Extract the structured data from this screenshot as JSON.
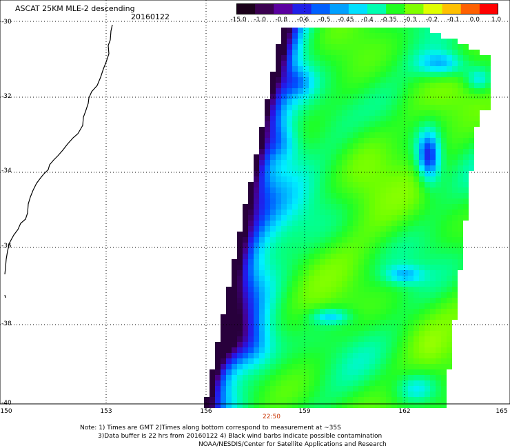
{
  "header": {
    "title": "ASCAT 25KM MLE-2 descending",
    "date": "20160122"
  },
  "colorbar": {
    "labels": [
      "-15.0",
      "-1.0",
      "-0.8",
      "-0.6",
      "-0.5",
      "-0.45",
      "-0.4",
      "-0.35",
      "-0.3",
      "-0.2",
      "-0.1",
      "0.0",
      "1.0"
    ],
    "colors": [
      "#1a001a",
      "#3a0050",
      "#5a00a0",
      "#2020e8",
      "#0060ff",
      "#00a0ff",
      "#00e0ff",
      "#00ffb0",
      "#20ff20",
      "#80ff00",
      "#e0ff00",
      "#ffc000",
      "#ff6000",
      "#ff0000"
    ]
  },
  "map": {
    "lat_labels": [
      "-30",
      "-32",
      "-34",
      "-36",
      "-38",
      "-40"
    ],
    "lon_labels": [
      "150",
      "153",
      "156",
      "159",
      "162",
      "165"
    ],
    "time_label": "22:50",
    "time_color": "#c83200"
  },
  "notes": {
    "line1": "Note: 1) Times are GMT 2)Times along bottom correspond to measurement at ~35S",
    "line2": "3)Data buffer is 22 hrs from 20160122 4) Black wind barbs indicate possible contamination",
    "line3": "NOAA/NESDIS/Center for Satellite Applications and Research"
  }
}
